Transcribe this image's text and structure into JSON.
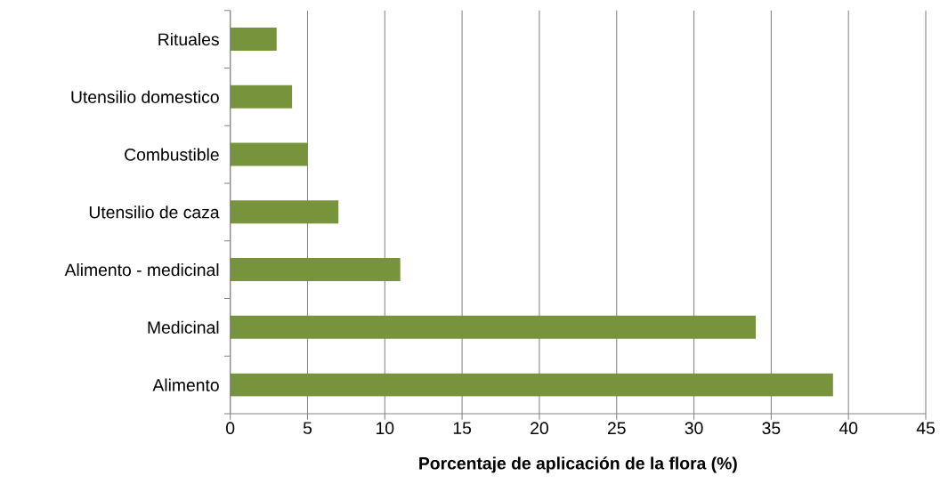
{
  "chart_data": {
    "type": "bar",
    "orientation": "horizontal",
    "categories": [
      "Rituales",
      "Utensilio domestico",
      "Combustible",
      "Utensilio de caza",
      "Alimento - medicinal",
      "Medicinal",
      "Alimento"
    ],
    "values": [
      3,
      4,
      5,
      7,
      11,
      34,
      39
    ],
    "color": "#77933c",
    "xlabel": "Porcentaje de aplicación de la flora (%)",
    "xlim": [
      0,
      45
    ],
    "xticks": [
      0,
      5,
      10,
      15,
      20,
      25,
      30,
      35,
      40,
      45
    ],
    "grid": "x"
  }
}
